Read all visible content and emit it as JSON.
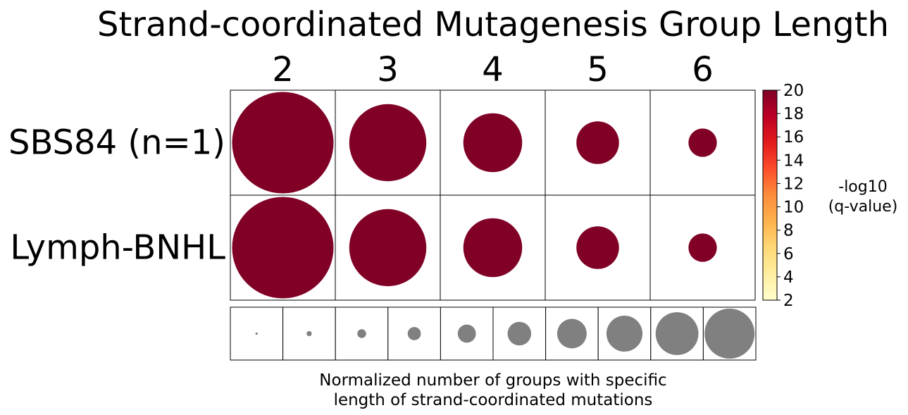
{
  "chart_data": {
    "type": "bubble-heatmap",
    "title": "Strand-coordinated Mutagenesis Group Length",
    "columns": [
      "2",
      "3",
      "4",
      "5",
      "6"
    ],
    "rows": [
      "SBS84 (n=1)",
      "Lymph-BNHL"
    ],
    "values": [
      [
        1.0,
        0.76,
        0.58,
        0.42,
        0.28
      ],
      [
        1.0,
        0.76,
        0.58,
        0.42,
        0.28
      ]
    ],
    "neg_log10_q": [
      [
        20,
        20,
        20,
        20,
        20
      ],
      [
        20,
        20,
        20,
        20,
        20
      ]
    ],
    "colorbar": {
      "label": "-log10\n(q-value)",
      "min": 2,
      "max": 20,
      "ticks": [
        "2",
        "4",
        "6",
        "8",
        "10",
        "12",
        "14",
        "16",
        "18",
        "20"
      ],
      "colors": [
        "#ffffcc",
        "#ffeda0",
        "#fed976",
        "#feb24c",
        "#fd8d3c",
        "#fc4e2a",
        "#e31a1c",
        "#bd0026",
        "#800026"
      ]
    },
    "size_legend": {
      "label": "Normalized number of groups with specific\nlength of strand-coordinated mutations",
      "values": [
        0.1,
        0.2,
        0.3,
        0.4,
        0.5,
        0.6,
        0.7,
        0.8,
        0.9,
        1.0
      ],
      "color": "#808080"
    }
  }
}
